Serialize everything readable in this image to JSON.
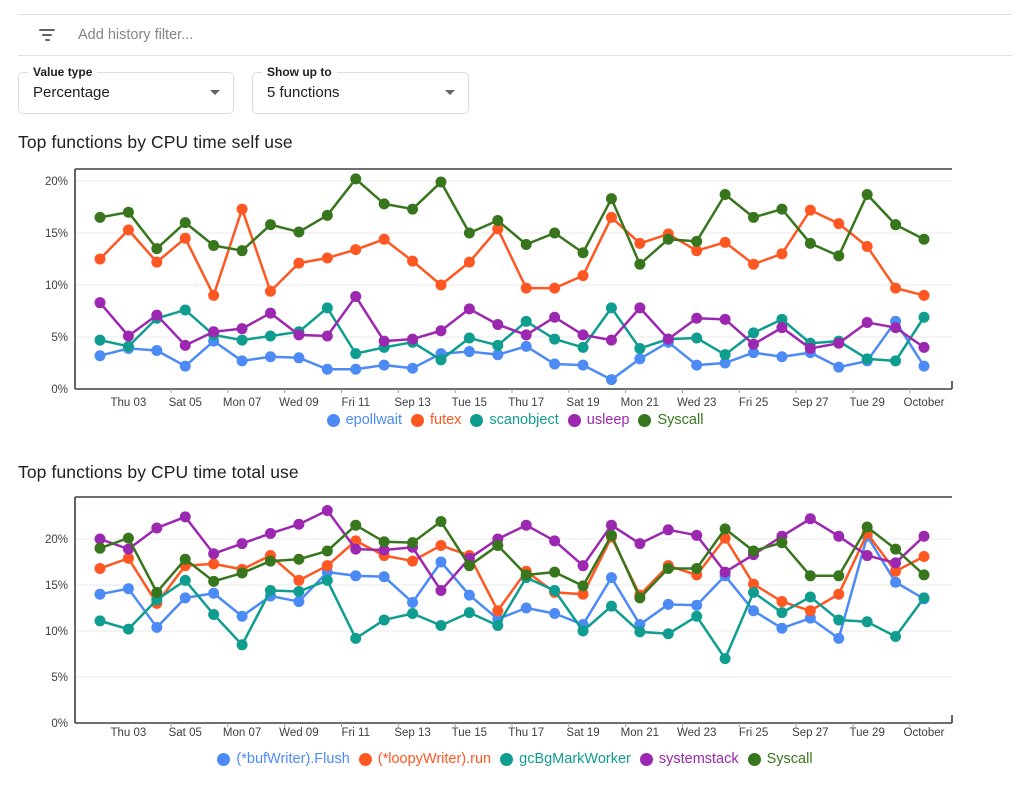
{
  "filter_bar": {
    "placeholder": "Add history filter...",
    "icon": "filter-list-icon"
  },
  "controls": [
    {
      "label": "Value type",
      "value": "Percentage"
    },
    {
      "label": "Show up to",
      "value": "5 functions"
    }
  ],
  "chart_data": [
    {
      "type": "line",
      "title": "Top functions by CPU time self use",
      "xlabel": "",
      "ylabel": "",
      "ylim": [
        0,
        21.2
      ],
      "grid": true,
      "legend_position": "bottom",
      "y_tick_labels": [
        "0%",
        "5%",
        "10%",
        "15%",
        "20%"
      ],
      "n_points": 30,
      "x_tick_indices": [
        1,
        3,
        5,
        7,
        9,
        11,
        13,
        15,
        17,
        19,
        21,
        23,
        25,
        27,
        29
      ],
      "x_tick_labels": [
        "Thu 03",
        "Sat 05",
        "Mon 07",
        "Wed 09",
        "Fri 11",
        "Sep 13",
        "Tue 15",
        "Thu 17",
        "Sat 19",
        "Mon 21",
        "Wed 23",
        "Fri 25",
        "Sep 27",
        "Tue 29",
        "October"
      ],
      "series": [
        {
          "name": "epollwait",
          "color": "#4c8bf5",
          "values": [
            3.2,
            3.9,
            3.7,
            2.2,
            4.6,
            2.7,
            3.1,
            3.0,
            1.9,
            1.9,
            2.3,
            2.0,
            3.4,
            3.6,
            3.3,
            4.1,
            2.4,
            2.3,
            0.9,
            2.9,
            4.5,
            2.3,
            2.5,
            3.5,
            3.1,
            3.5,
            2.1,
            2.7,
            6.5,
            2.2
          ]
        },
        {
          "name": "futex",
          "color": "#ff5722",
          "values": [
            12.5,
            15.3,
            12.2,
            14.5,
            9.0,
            17.3,
            9.4,
            12.1,
            12.6,
            13.4,
            14.4,
            12.3,
            10.0,
            12.2,
            15.4,
            9.7,
            9.7,
            10.9,
            16.5,
            14.0,
            14.9,
            13.3,
            14.1,
            12.0,
            13.0,
            17.2,
            15.9,
            13.7,
            9.7,
            9.0
          ]
        },
        {
          "name": "scanobject",
          "color": "#0f9d8f",
          "values": [
            4.7,
            4.1,
            6.8,
            7.6,
            5.2,
            4.7,
            5.1,
            5.5,
            7.8,
            3.4,
            4.0,
            4.5,
            2.8,
            4.9,
            4.2,
            6.5,
            4.8,
            4.0,
            7.8,
            3.9,
            4.8,
            4.9,
            3.3,
            5.4,
            6.7,
            4.4,
            4.6,
            2.9,
            2.7,
            6.9
          ]
        },
        {
          "name": "usleep",
          "color": "#9c27b0",
          "values": [
            8.3,
            5.1,
            7.1,
            4.2,
            5.5,
            5.8,
            7.3,
            5.2,
            5.1,
            8.9,
            4.6,
            4.8,
            5.6,
            7.7,
            6.2,
            5.2,
            6.9,
            5.2,
            4.7,
            7.8,
            4.8,
            6.8,
            6.7,
            4.3,
            5.9,
            3.9,
            4.4,
            6.4,
            5.9,
            4.0
          ]
        },
        {
          "name": "Syscall",
          "color": "#38761d",
          "values": [
            16.5,
            17.0,
            13.5,
            16.0,
            13.8,
            13.3,
            15.8,
            15.1,
            16.7,
            20.2,
            17.8,
            17.3,
            19.9,
            15.0,
            16.2,
            13.9,
            15.0,
            13.1,
            18.3,
            12.0,
            14.4,
            14.2,
            18.7,
            16.5,
            17.3,
            14.0,
            12.8,
            18.7,
            15.8,
            14.4
          ]
        }
      ]
    },
    {
      "type": "line",
      "title": "Top functions by CPU time total use",
      "xlabel": "",
      "ylabel": "",
      "ylim": [
        0,
        24.6
      ],
      "grid": true,
      "legend_position": "bottom",
      "y_tick_labels": [
        "0%",
        "5%",
        "10%",
        "15%",
        "20%"
      ],
      "n_points": 30,
      "x_tick_indices": [
        1,
        3,
        5,
        7,
        9,
        11,
        13,
        15,
        17,
        19,
        21,
        23,
        25,
        27,
        29
      ],
      "x_tick_labels": [
        "Thu 03",
        "Sat 05",
        "Mon 07",
        "Wed 09",
        "Fri 11",
        "Sep 13",
        "Tue 15",
        "Thu 17",
        "Sat 19",
        "Mon 21",
        "Wed 23",
        "Fri 25",
        "Sep 27",
        "Tue 29",
        "October"
      ],
      "series": [
        {
          "name": "(*bufWriter).Flush",
          "color": "#4c8bf5",
          "values": [
            14.0,
            14.6,
            10.4,
            13.6,
            14.1,
            11.6,
            13.8,
            13.2,
            16.4,
            16.0,
            15.9,
            13.1,
            17.5,
            13.9,
            11.3,
            12.5,
            11.9,
            10.7,
            15.8,
            10.7,
            12.9,
            12.8,
            16.0,
            12.2,
            10.3,
            11.4,
            9.2,
            20.3,
            15.3,
            13.5
          ]
        },
        {
          "name": "(*loopyWriter).run",
          "color": "#ff5722",
          "values": [
            16.8,
            17.9,
            13.0,
            17.1,
            17.3,
            16.7,
            18.2,
            15.5,
            17.1,
            19.8,
            18.2,
            17.6,
            19.3,
            18.2,
            12.2,
            16.5,
            14.2,
            14.0,
            20.2,
            13.9,
            17.1,
            16.1,
            20.1,
            15.1,
            13.2,
            12.2,
            14.0,
            20.6,
            16.5,
            18.1
          ]
        },
        {
          "name": "gcBgMarkWorker",
          "color": "#0f9d8f",
          "values": [
            11.1,
            10.2,
            13.4,
            15.5,
            11.8,
            8.5,
            14.4,
            14.3,
            15.5,
            9.2,
            11.2,
            11.9,
            10.6,
            12.0,
            10.6,
            15.8,
            14.4,
            10.0,
            12.7,
            9.9,
            9.7,
            11.6,
            7.0,
            14.2,
            12.0,
            13.7,
            11.2,
            11.0,
            9.4,
            13.6
          ]
        },
        {
          "name": "systemstack",
          "color": "#9c27b0",
          "values": [
            20.0,
            18.9,
            21.2,
            22.4,
            18.4,
            19.5,
            20.6,
            21.6,
            23.1,
            18.9,
            18.8,
            19.1,
            14.4,
            17.9,
            20.0,
            21.5,
            19.8,
            17.1,
            21.5,
            19.5,
            21.0,
            20.4,
            16.4,
            18.3,
            20.3,
            22.2,
            20.3,
            18.2,
            17.4,
            20.3
          ]
        },
        {
          "name": "Syscall",
          "color": "#38761d",
          "values": [
            19.0,
            20.1,
            14.2,
            17.8,
            15.4,
            16.3,
            17.6,
            17.8,
            18.7,
            21.5,
            19.7,
            19.6,
            21.9,
            17.1,
            19.3,
            16.1,
            16.4,
            14.9,
            20.4,
            13.6,
            16.8,
            16.8,
            21.1,
            18.7,
            19.6,
            16.0,
            16.0,
            21.3,
            18.9,
            16.1
          ]
        }
      ]
    }
  ],
  "style": {
    "frame_color": "#3c4043",
    "grid_color": "#e8e8e8",
    "tick_label_color": "#3c4043"
  }
}
